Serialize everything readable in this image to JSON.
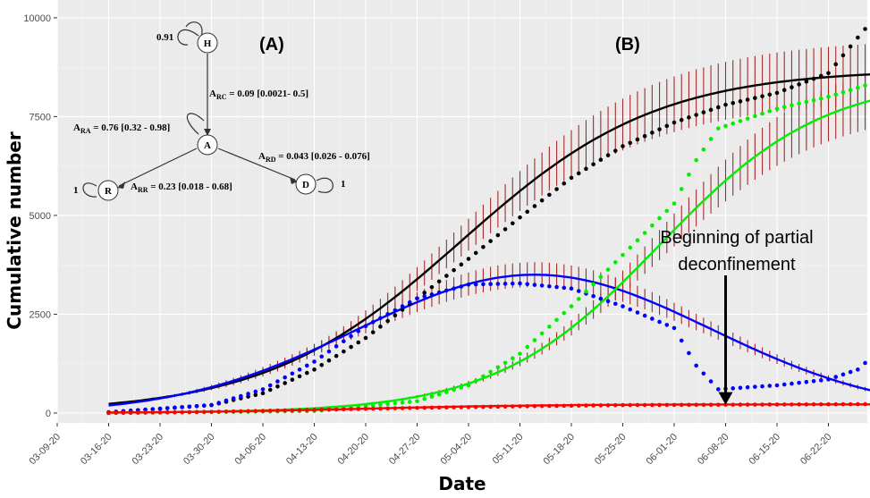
{
  "chart_data": {
    "type": "line",
    "title": "",
    "xlabel": "Date",
    "ylabel": "Cumulative number",
    "ylim": [
      -250,
      10450
    ],
    "yticks": [
      0,
      2500,
      5000,
      7500,
      10000
    ],
    "ytick_labels": [
      "0",
      "2500",
      "5000",
      "7500",
      "10000"
    ],
    "x_dates": [
      "03-09-20",
      "03-16-20",
      "03-23-20",
      "03-30-20",
      "04-06-20",
      "04-13-20",
      "04-20-20",
      "04-27-20",
      "05-04-20",
      "05-11-20",
      "05-18-20",
      "05-25-20",
      "06-01-20",
      "06-08-20",
      "06-15-20",
      "06-22-20"
    ],
    "grid": true,
    "legend": "none",
    "colors": {
      "cumulative": "#000000",
      "active": "#0000ff",
      "recovered": "#00ee00",
      "deaths": "#ff0000",
      "error_bars": "#a52a2a",
      "panel_bg": "#ebebeb",
      "grid": "#ffffff"
    },
    "series": [
      {
        "color": "#000000",
        "model": {
          "N": 8700,
          "k": 0.075,
          "t0": 48
        },
        "observed": [
          [
            0,
            20
          ],
          [
            14,
            200
          ],
          [
            21,
            500
          ],
          [
            28,
            1100
          ],
          [
            35,
            1900
          ],
          [
            42,
            2900
          ],
          [
            49,
            3900
          ],
          [
            56,
            4950
          ],
          [
            63,
            5950
          ],
          [
            70,
            6750
          ],
          [
            77,
            7350
          ],
          [
            84,
            7800
          ],
          [
            91,
            8100
          ],
          [
            98,
            8600
          ],
          [
            102,
            9500
          ],
          [
            105,
            10150
          ]
        ]
      },
      {
        "color": "#0000ff",
        "model": {
          "A": 3500,
          "peak": 58,
          "width": 34
        },
        "observed": [
          [
            0,
            20
          ],
          [
            14,
            200
          ],
          [
            21,
            600
          ],
          [
            28,
            1300
          ],
          [
            35,
            2200
          ],
          [
            42,
            2900
          ],
          [
            49,
            3250
          ],
          [
            56,
            3280
          ],
          [
            63,
            3150
          ],
          [
            70,
            2700
          ],
          [
            77,
            2150
          ],
          [
            80,
            1200
          ],
          [
            83,
            600
          ],
          [
            91,
            700
          ],
          [
            98,
            850
          ],
          [
            102,
            1100
          ],
          [
            105,
            1600
          ]
        ]
      },
      {
        "color": "#00ee00",
        "model": {
          "N": 8500,
          "k": 0.09,
          "t0": 75
        },
        "observed": [
          [
            0,
            0
          ],
          [
            28,
            50
          ],
          [
            42,
            300
          ],
          [
            49,
            700
          ],
          [
            56,
            1500
          ],
          [
            63,
            2700
          ],
          [
            70,
            4000
          ],
          [
            77,
            5300
          ],
          [
            80,
            6400
          ],
          [
            83,
            7200
          ],
          [
            91,
            7700
          ],
          [
            98,
            8000
          ],
          [
            105,
            8400
          ]
        ]
      },
      {
        "color": "#ff0000",
        "model": {
          "N": 220,
          "k": 0.08,
          "t0": 35
        },
        "observed": [
          [
            0,
            0
          ],
          [
            14,
            30
          ],
          [
            28,
            80
          ],
          [
            42,
            130
          ],
          [
            56,
            170
          ],
          [
            70,
            200
          ],
          [
            84,
            210
          ],
          [
            105,
            225
          ]
        ]
      }
    ],
    "annotations": [
      {
        "text_lines": [
          "Beginning of partial",
          "deconfinement"
        ],
        "arrow_to": {
          "date": "06-08-20",
          "value": 300
        }
      }
    ]
  },
  "diagram": {
    "panel_a": "(A)",
    "panel_b": "(B)",
    "nodes": {
      "h": "H",
      "a": "A",
      "r": "R",
      "d": "D"
    },
    "self_loops": {
      "h": "0.91",
      "r": "1",
      "d": "1"
    },
    "edges": {
      "rc": {
        "main": "A",
        "sub": "RC",
        "text": " = 0.09 [0.0021- 0.5]"
      },
      "ra": {
        "main": "A",
        "sub": "RA",
        "text": " = 0.76 [0.32 - 0.98]"
      },
      "rd": {
        "main": "A",
        "sub": "RD",
        "text": " = 0.043 [0.026 - 0.076]"
      },
      "rr": {
        "main": "A",
        "sub": "RR",
        "text": " = 0.23 [0.018 - 0.68]"
      }
    }
  }
}
